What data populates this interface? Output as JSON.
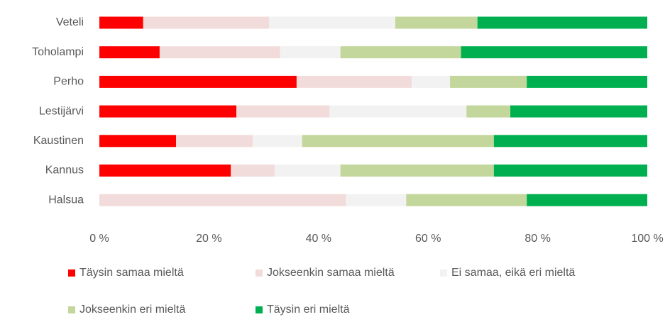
{
  "chart_data": {
    "type": "stacked-bar-horizontal",
    "categories": [
      "Veteli",
      "Toholampi",
      "Perho",
      "Lestijärvi",
      "Kaustinen",
      "Kannus",
      "Halsua"
    ],
    "series": [
      {
        "name": "Täysin samaa mieltä",
        "color": "#ff0000",
        "values": [
          8,
          11,
          36,
          25,
          14,
          24,
          0
        ]
      },
      {
        "name": "Jokseenkin samaa mieltä",
        "color": "#f2dcdb",
        "values": [
          23,
          22,
          21,
          17,
          14,
          8,
          45
        ]
      },
      {
        "name": "Ei samaa, eikä eri mieltä",
        "color": "#f2f2f2",
        "values": [
          23,
          11,
          7,
          25,
          9,
          12,
          11
        ]
      },
      {
        "name": "Jokseenkin eri mieltä",
        "color": "#c3d69b",
        "values": [
          15,
          22,
          14,
          8,
          35,
          28,
          22
        ]
      },
      {
        "name": "Täysin eri mieltä",
        "color": "#00b050",
        "values": [
          31,
          34,
          22,
          25,
          28,
          28,
          22
        ]
      }
    ],
    "xlim": [
      0,
      100
    ],
    "xticks": [
      {
        "value": 0,
        "label": "0 %"
      },
      {
        "value": 20,
        "label": "20 %"
      },
      {
        "value": 40,
        "label": "40 %"
      },
      {
        "value": 60,
        "label": "60 %"
      },
      {
        "value": 80,
        "label": "80 %"
      },
      {
        "value": 100,
        "label": "100 %"
      }
    ],
    "grid": false,
    "legend": "bottom"
  }
}
